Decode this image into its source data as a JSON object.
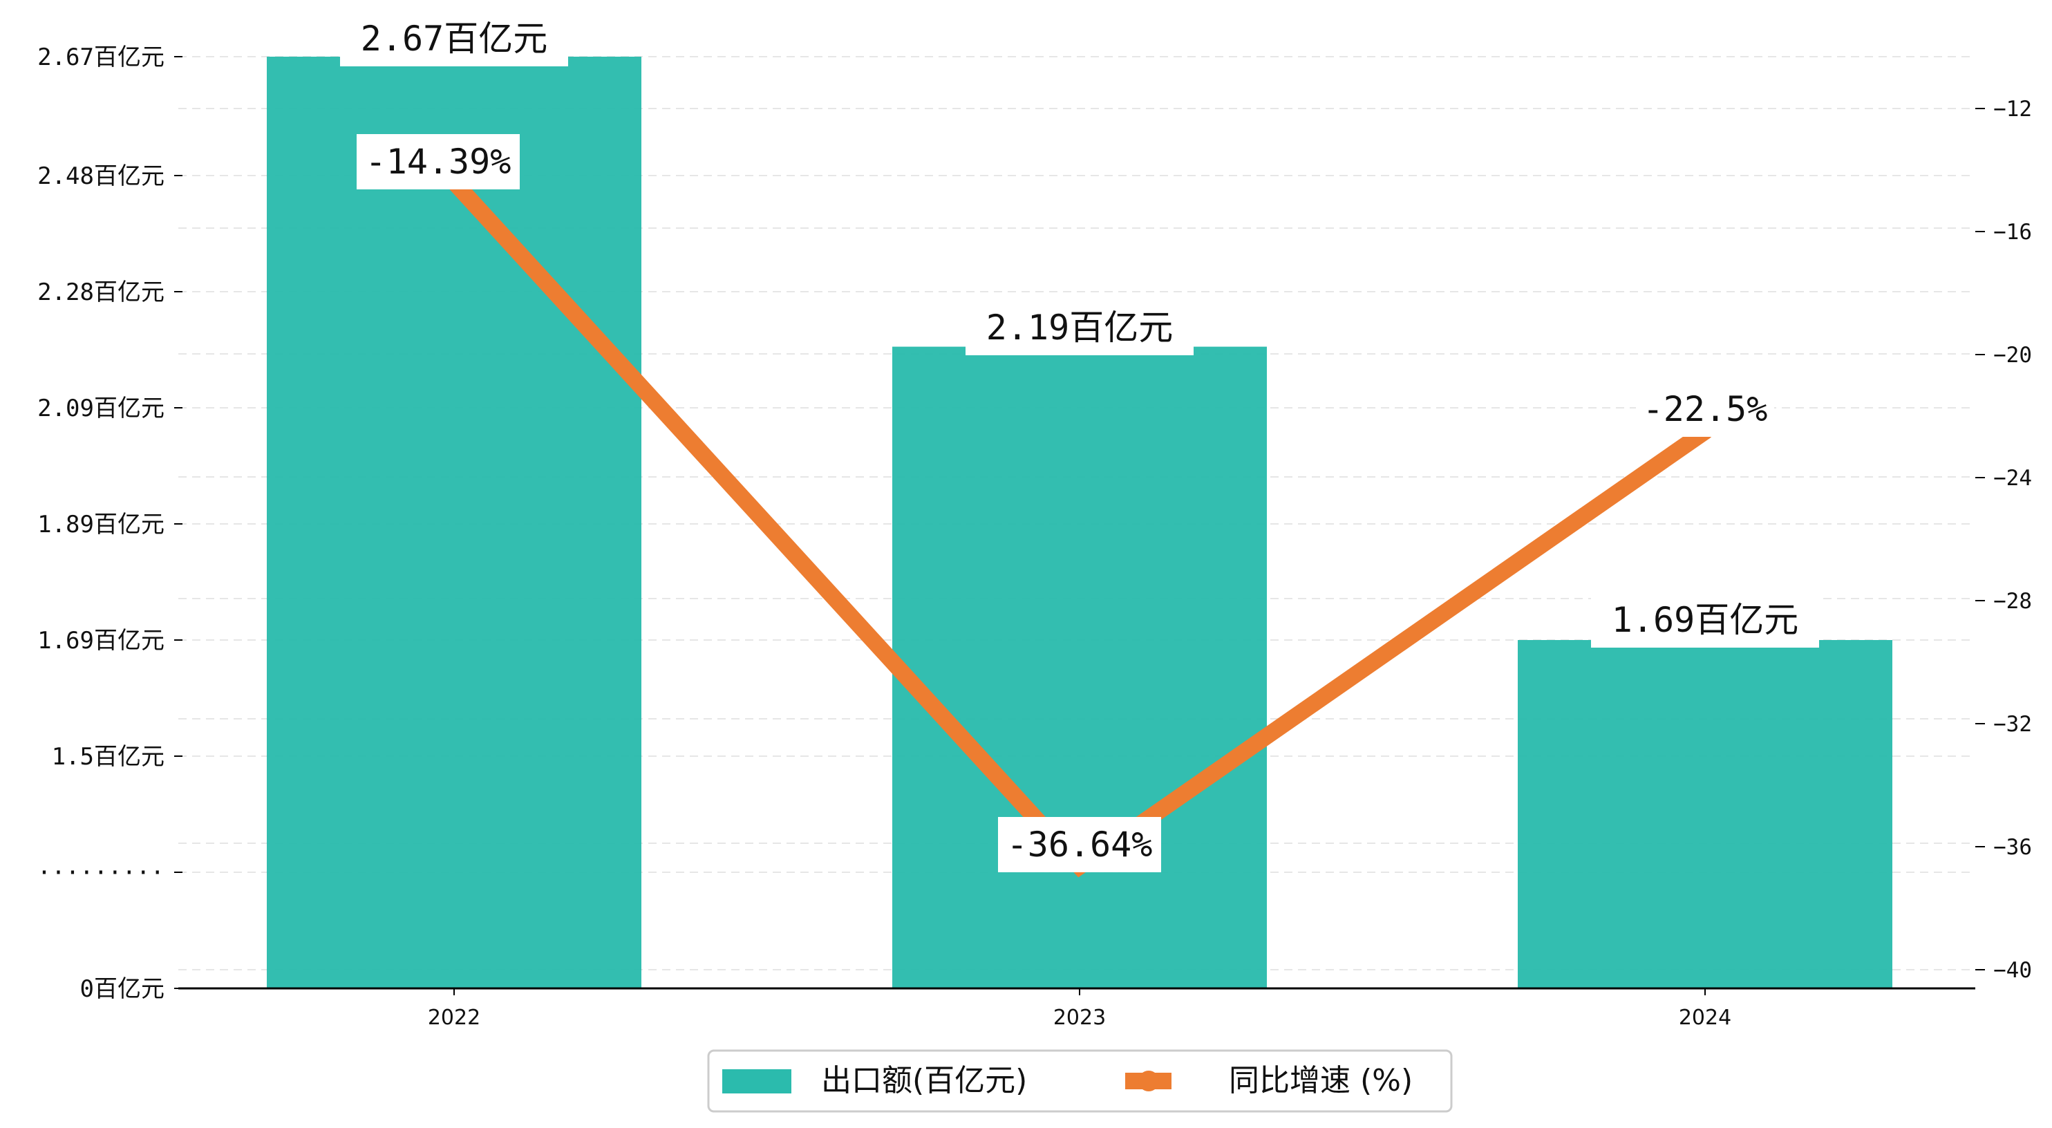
{
  "colors": {
    "bar": "#2BBBAD",
    "line": "#ED7D31",
    "grid": "#e6e6e6",
    "axis": "#000000",
    "label_bg": "#ffffff"
  },
  "chart_data": {
    "type": "bar",
    "categories": [
      "2022",
      "2023",
      "2024"
    ],
    "series": [
      {
        "name": "出口额(百亿元)",
        "type": "bar",
        "axis": "left",
        "values": [
          2.67,
          2.19,
          1.69
        ],
        "labels": [
          "2.67百亿元",
          "2.19百亿元",
          "1.69百亿元"
        ]
      },
      {
        "name": "同比增速 (%)",
        "type": "line",
        "axis": "right",
        "values": [
          -14.39,
          -36.64,
          -22.5
        ],
        "labels": [
          "-14.39%",
          "-36.64%",
          "-22.5%"
        ]
      }
    ],
    "left_axis": {
      "tick_values": [
        0,
        1.3,
        1.5,
        1.69,
        1.89,
        2.09,
        2.28,
        2.48,
        2.67
      ],
      "tick_labels": [
        "0百亿元",
        "·········",
        "1.5百亿元",
        "1.69百亿元",
        "1.89百亿元",
        "2.09百亿元",
        "2.28百亿元",
        "2.48百亿元",
        "2.67百亿元"
      ],
      "broken": true
    },
    "right_axis": {
      "ylim": [
        -40.6,
        -10.4
      ],
      "tick_values": [
        -12,
        -16,
        -20,
        -24,
        -28,
        -32,
        -36,
        -40
      ],
      "tick_labels": [
        "−12",
        "−16",
        "−20",
        "−24",
        "−28",
        "−32",
        "−36",
        "−40"
      ]
    },
    "grid": true,
    "legend_position": "bottom-center"
  }
}
